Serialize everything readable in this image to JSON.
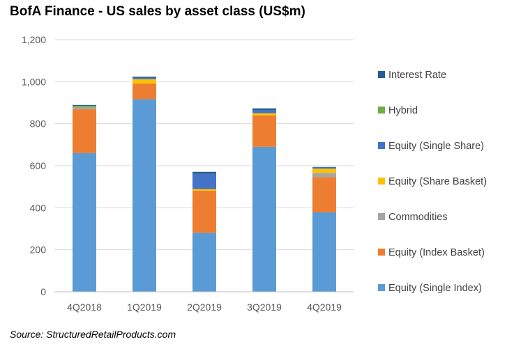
{
  "chart_data": {
    "type": "bar",
    "stacked": true,
    "title": "BofA Finance - US sales by asset class (US$m)",
    "xlabel": "",
    "ylabel": "",
    "ylim": [
      0,
      1200
    ],
    "yticks": [
      0,
      200,
      400,
      600,
      800,
      1000,
      1200
    ],
    "ytick_labels": [
      "0",
      "200",
      "400",
      "600",
      "800",
      "1,000",
      "1,200"
    ],
    "grid": "horizontal",
    "legend_position": "right",
    "categories": [
      "4Q2018",
      "1Q2019",
      "2Q2019",
      "3Q2019",
      "4Q2019"
    ],
    "series": [
      {
        "name": "Equity (Single Index)",
        "color": "#5b9bd5",
        "values": [
          660,
          917,
          281,
          690,
          378
        ]
      },
      {
        "name": "Equity (Index Basket)",
        "color": "#ed7d31",
        "values": [
          209,
          75,
          200,
          150,
          168
        ]
      },
      {
        "name": "Commodities",
        "color": "#a5a5a5",
        "values": [
          10,
          0,
          0,
          0,
          20
        ]
      },
      {
        "name": "Equity (Share Basket)",
        "color": "#ffc000",
        "values": [
          0,
          20,
          8,
          10,
          20
        ]
      },
      {
        "name": "Equity (Single Share)",
        "color": "#4472c4",
        "values": [
          0,
          6,
          72,
          15,
          5
        ]
      },
      {
        "name": "Hybrid",
        "color": "#70ad47",
        "values": [
          6,
          0,
          0,
          0,
          0
        ]
      },
      {
        "name": "Interest Rate",
        "color": "#255e91",
        "values": [
          4,
          6,
          10,
          8,
          3
        ]
      }
    ]
  },
  "source_note": "Source: StructuredRetailProducts.com"
}
